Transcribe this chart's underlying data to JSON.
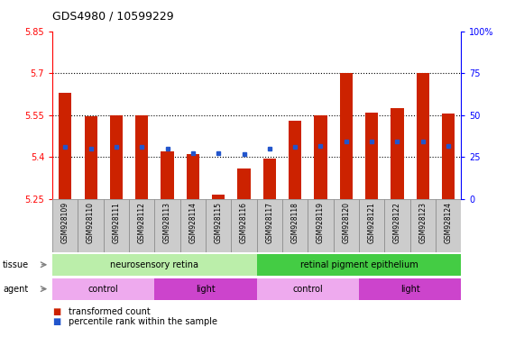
{
  "title": "GDS4980 / 10599229",
  "samples": [
    "GSM928109",
    "GSM928110",
    "GSM928111",
    "GSM928112",
    "GSM928113",
    "GSM928114",
    "GSM928115",
    "GSM928116",
    "GSM928117",
    "GSM928118",
    "GSM928119",
    "GSM928120",
    "GSM928121",
    "GSM928122",
    "GSM928123",
    "GSM928124"
  ],
  "bar_values": [
    5.63,
    5.545,
    5.55,
    5.55,
    5.42,
    5.41,
    5.265,
    5.36,
    5.395,
    5.53,
    5.55,
    5.7,
    5.56,
    5.575,
    5.7,
    5.555
  ],
  "blue_values": [
    5.435,
    5.43,
    5.435,
    5.435,
    5.43,
    5.415,
    5.415,
    5.41,
    5.43,
    5.435,
    5.44,
    5.455,
    5.455,
    5.455,
    5.455,
    5.44
  ],
  "bar_bottom": 5.25,
  "ylim_left": [
    5.25,
    5.85
  ],
  "ylim_right": [
    0,
    100
  ],
  "yticks_left": [
    5.25,
    5.4,
    5.55,
    5.7,
    5.85
  ],
  "yticks_left_labels": [
    "5.25",
    "5.4",
    "5.55",
    "5.7",
    "5.85"
  ],
  "yticks_right": [
    0,
    25,
    50,
    75,
    100
  ],
  "yticks_right_labels": [
    "0",
    "25",
    "50",
    "75",
    "100%"
  ],
  "grid_lines": [
    5.4,
    5.55,
    5.7
  ],
  "bar_color": "#cc2200",
  "blue_color": "#2255cc",
  "tissue_labels": [
    {
      "text": "neurosensory retina",
      "xstart": 0,
      "xend": 8,
      "color": "#bbeeaa"
    },
    {
      "text": "retinal pigment epithelium",
      "xstart": 8,
      "xend": 16,
      "color": "#44cc44"
    }
  ],
  "agent_labels": [
    {
      "text": "control",
      "xstart": 0,
      "xend": 4,
      "color": "#eeaaee"
    },
    {
      "text": "light",
      "xstart": 4,
      "xend": 8,
      "color": "#cc44cc"
    },
    {
      "text": "control",
      "xstart": 8,
      "xend": 12,
      "color": "#eeaaee"
    },
    {
      "text": "light",
      "xstart": 12,
      "xend": 16,
      "color": "#cc44cc"
    }
  ],
  "legend_items": [
    {
      "label": "transformed count",
      "color": "#cc2200"
    },
    {
      "label": "percentile rank within the sample",
      "color": "#2255cc"
    }
  ],
  "cell_bg": "#cccccc",
  "cell_border": "#888888",
  "plot_bg": "#ffffff"
}
